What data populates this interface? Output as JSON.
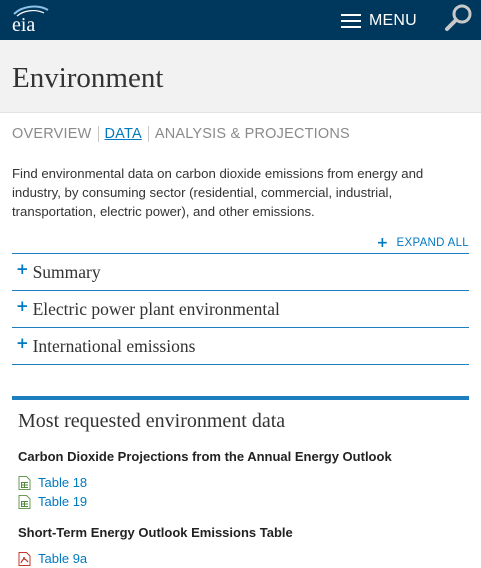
{
  "header": {
    "logo_text": "eia",
    "menu_label": "MENU",
    "brand_color": "#00385d",
    "accent_color": "#0079c1"
  },
  "page": {
    "title": "Environment"
  },
  "subnav": {
    "items": [
      {
        "label": "OVERVIEW",
        "active": false
      },
      {
        "label": "DATA",
        "active": true
      },
      {
        "label": "ANALYSIS & PROJECTIONS",
        "active": false
      }
    ]
  },
  "intro": {
    "text": "Find environmental data on carbon dioxide emissions from energy and industry, by consuming sector (residential, commercial, industrial, transportation, electric power), and other emissions."
  },
  "accordion": {
    "expand_all_label": "EXPAND ALL",
    "items": [
      {
        "label": "Summary"
      },
      {
        "label": "Electric power plant environmental"
      },
      {
        "label": "International emissions"
      }
    ]
  },
  "most_requested": {
    "title": "Most requested environment data",
    "groups": [
      {
        "title": "Carbon Dioxide Projections from the Annual Energy Outlook",
        "links": [
          {
            "label": "Table 18",
            "icon": "spreadsheet-icon"
          },
          {
            "label": "Table 19",
            "icon": "spreadsheet-icon"
          }
        ]
      },
      {
        "title": "Short-Term Energy Outlook Emissions Table",
        "links": [
          {
            "label": "Table 9a",
            "icon": "pdf-icon"
          }
        ]
      }
    ]
  }
}
